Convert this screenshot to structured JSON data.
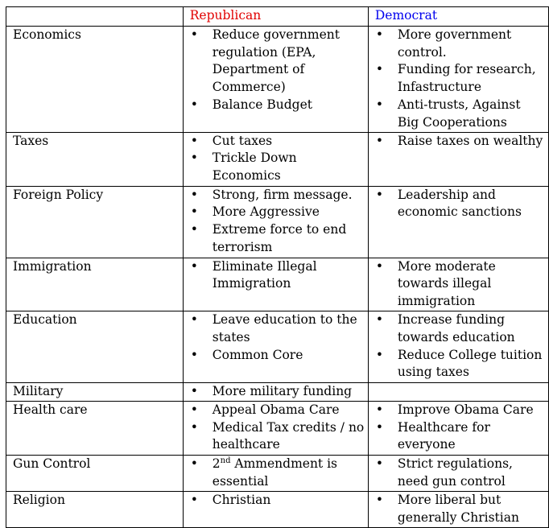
{
  "header": {
    "topic": "",
    "republican": "Republican",
    "democrat": "Democrat"
  },
  "colors": {
    "republican": "#e10000",
    "democrat": "#0000ee"
  },
  "rows": [
    {
      "topic": "Economics",
      "republican": [
        "Reduce government regulation (EPA, Department of Commerce)",
        "Balance Budget"
      ],
      "democrat": [
        "More government control.",
        "Funding for research, Infastructure",
        "Anti-trusts, Against Big Cooperations"
      ]
    },
    {
      "topic": "Taxes",
      "republican": [
        "Cut taxes",
        "Trickle Down Economics"
      ],
      "democrat": [
        "Raise taxes on wealthy"
      ]
    },
    {
      "topic": "Foreign Policy",
      "republican": [
        "Strong, firm message.",
        "More Aggressive",
        "Extreme force to end terrorism"
      ],
      "democrat": [
        "Leadership and economic sanctions"
      ]
    },
    {
      "topic": "Immigration",
      "republican": [
        "Eliminate Illegal Immigration"
      ],
      "democrat": [
        "More moderate towards illegal immigration"
      ]
    },
    {
      "topic": "Education",
      "republican": [
        "Leave education to the states",
        "Common Core"
      ],
      "democrat": [
        "Increase funding towards education",
        "Reduce College tuition using taxes"
      ]
    },
    {
      "topic": "Military",
      "republican": [
        "More military funding"
      ],
      "democrat": []
    },
    {
      "topic": "Health care",
      "republican": [
        "Appeal Obama Care",
        "Medical Tax credits / no healthcare"
      ],
      "democrat": [
        "Improve Obama Care",
        "Healthcare for everyone"
      ]
    },
    {
      "topic": "Gun Control",
      "republican": [
        "2nd Ammendment is essential"
      ],
      "democrat": [
        "Strict regulations, need gun control"
      ]
    },
    {
      "topic": "Religion",
      "republican": [
        "Christian"
      ],
      "democrat": [
        "More liberal but generally Christian"
      ]
    }
  ]
}
